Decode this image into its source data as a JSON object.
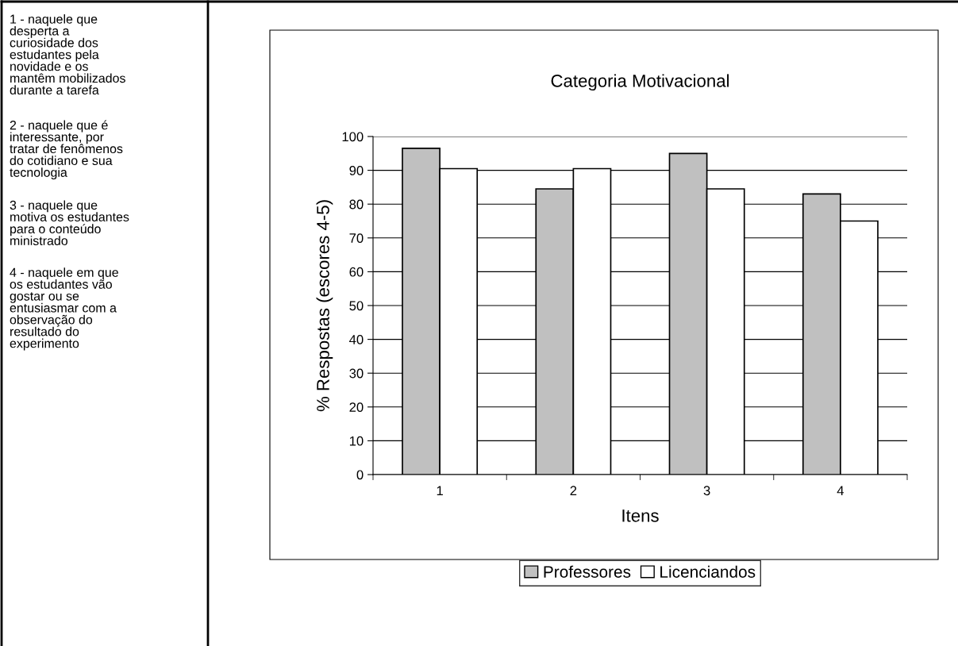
{
  "chart_data": {
    "type": "bar",
    "title": "Categoria Motivacional",
    "xlabel": "Itens",
    "ylabel": "% Respostas (escores 4-5)",
    "categories": [
      "1",
      "2",
      "3",
      "4"
    ],
    "series": [
      {
        "name": "Professores",
        "color": "#c0c0c0",
        "values": [
          96.5,
          84.5,
          95,
          83
        ]
      },
      {
        "name": "Licenciandos",
        "color": "#ffffff",
        "values": [
          90.5,
          90.5,
          84.5,
          75
        ]
      }
    ],
    "ylim": [
      0,
      100
    ],
    "yticks": [
      0,
      10,
      20,
      30,
      40,
      50,
      60,
      70,
      80,
      90,
      100
    ],
    "grid": "y",
    "legend": "bottom",
    "annotations": [
      "1 - naquele que\ndesperta a\ncuriosidade dos\nestudantes pela\nnovidade e os\nmantêm mobilizados\ndurante a tarefa",
      "2 - naquele que é\ninteressante, por\ntratar de fenômenos\ndo cotidiano e sua\ntecnologia",
      "3 - naquele que\nmotiva os estudantes\npara o conteúdo\nministrado",
      "4 - naquele em que\nos estudantes vão\ngostar ou se\nentusiasmar com a\nobservação do\nresultado do\nexperimento"
    ]
  }
}
